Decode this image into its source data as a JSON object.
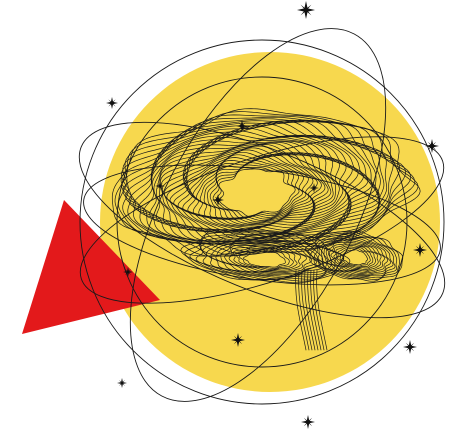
{
  "illustration": {
    "subject": "brain",
    "colors": {
      "background": "#ffffff",
      "sun_disc": "#f7d84e",
      "triangle": "#e3191b",
      "line_art": "#1a1a1a",
      "orbit": "#1a1a1a",
      "star": "#111111"
    },
    "icons": [
      "brain-icon",
      "sparkle-star-icon",
      "triangle-shape",
      "orbit-ring"
    ]
  }
}
